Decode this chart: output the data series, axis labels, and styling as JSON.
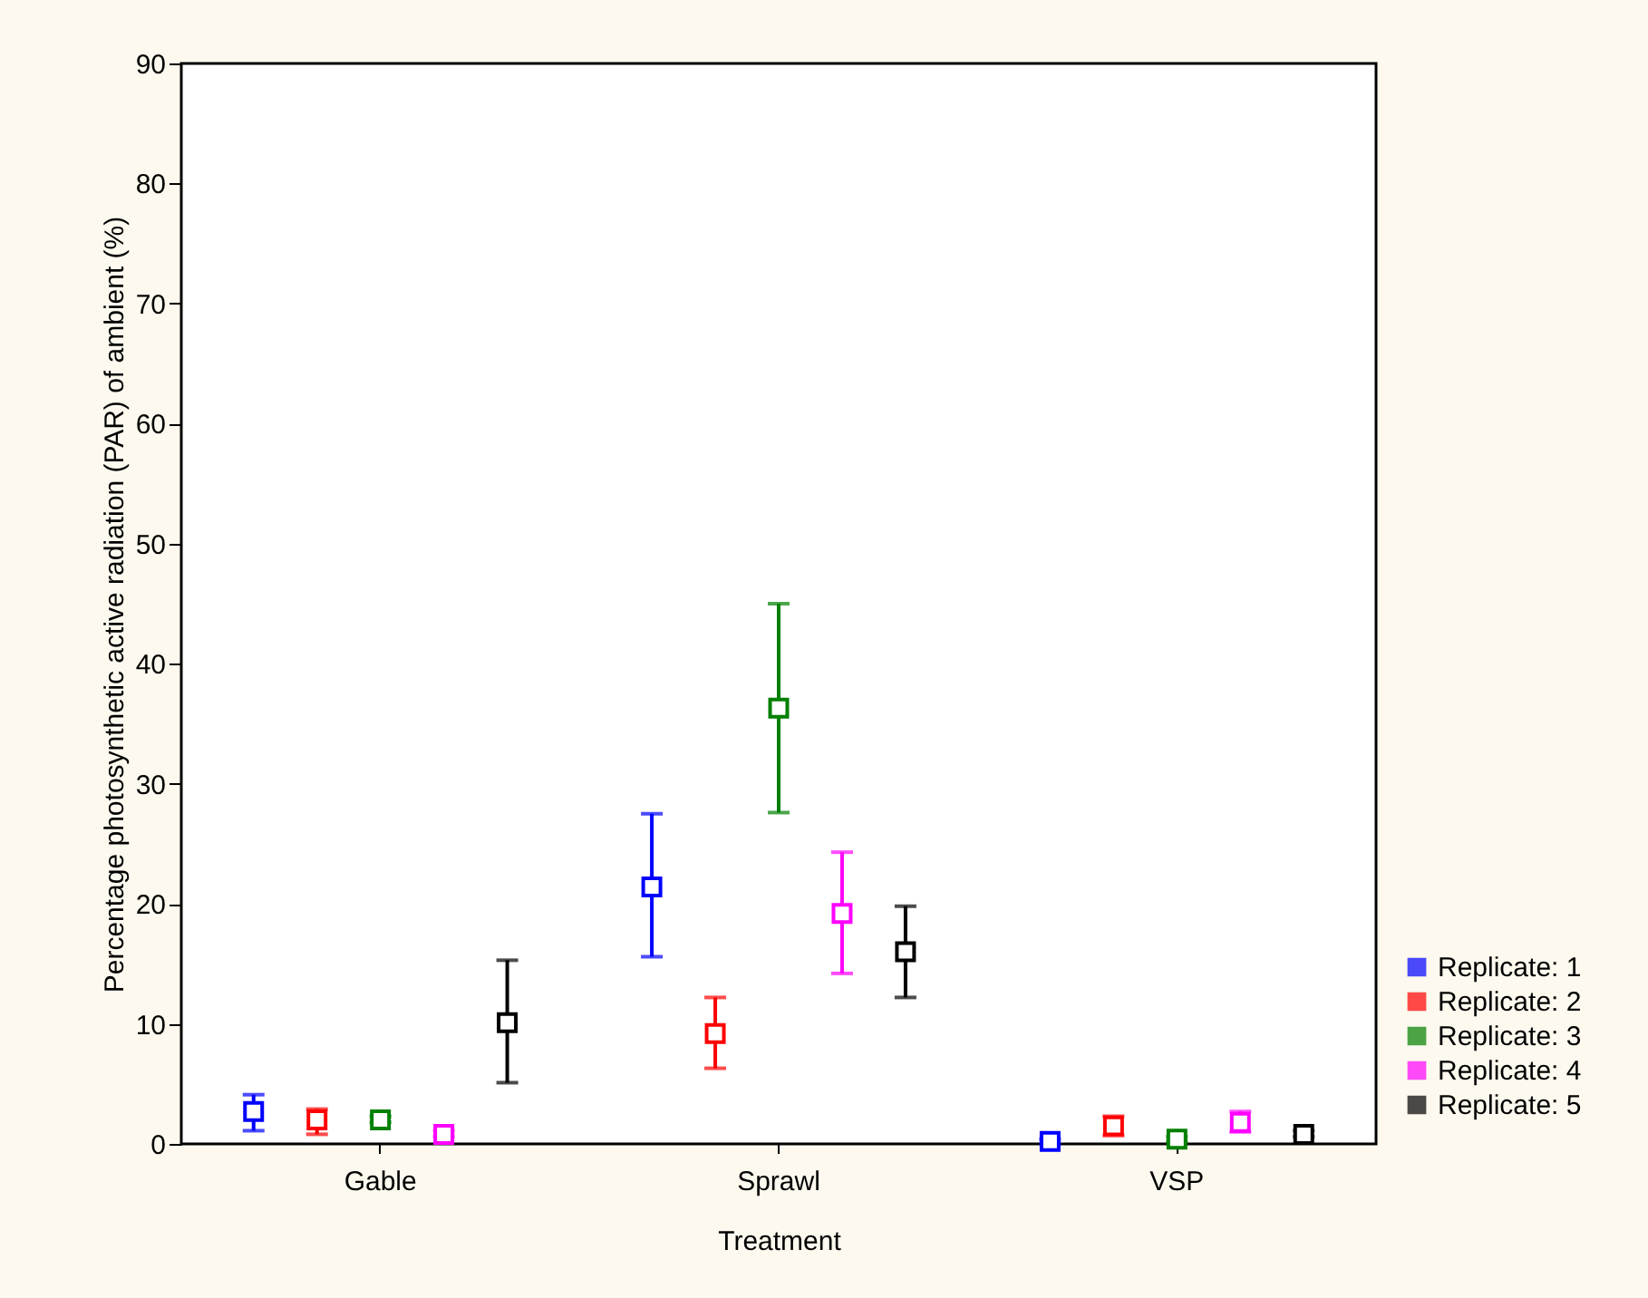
{
  "chart_data": {
    "type": "scatter",
    "xlabel": "Treatment",
    "ylabel": "Percentage photosynthetic active radiation (PAR) of ambient (%)",
    "categories": [
      "Gable",
      "Sprawl",
      "VSP"
    ],
    "series": [
      {
        "name": "Replicate: 1",
        "color": "#0000ff",
        "values": [
          2.7,
          21.4,
          0.2
        ],
        "errors": [
          [
            1.1,
            4.1
          ],
          [
            15.6,
            27.5
          ],
          [
            0.0,
            0.4
          ]
        ]
      },
      {
        "name": "Replicate: 2",
        "color": "#ff0000",
        "values": [
          2.0,
          9.2,
          1.5
        ],
        "errors": [
          [
            0.8,
            2.9
          ],
          [
            6.3,
            12.2
          ],
          [
            0.7,
            2.3
          ]
        ]
      },
      {
        "name": "Replicate: 3",
        "color": "#008000",
        "values": [
          2.0,
          36.3,
          0.4
        ],
        "errors": [
          [
            1.8,
            2.3
          ],
          [
            27.6,
            45.0
          ],
          [
            0.2,
            0.6
          ]
        ]
      },
      {
        "name": "Replicate: 4",
        "color": "#ff00ff",
        "values": [
          0.8,
          19.2,
          1.8
        ],
        "errors": [
          [
            0.6,
            1.1
          ],
          [
            14.2,
            24.3
          ],
          [
            1.0,
            2.7
          ]
        ]
      },
      {
        "name": "Replicate: 5",
        "color": "#000000",
        "values": [
          10.1,
          16.0,
          0.8
        ],
        "errors": [
          [
            5.1,
            15.3
          ],
          [
            12.2,
            19.8
          ],
          [
            0.6,
            1.1
          ]
        ]
      }
    ],
    "ylim": [
      0,
      90
    ],
    "yticks": [
      0,
      10,
      20,
      30,
      40,
      50,
      60,
      70,
      80,
      90
    ],
    "grid": false,
    "legend": "bottom right",
    "marker": "square"
  }
}
